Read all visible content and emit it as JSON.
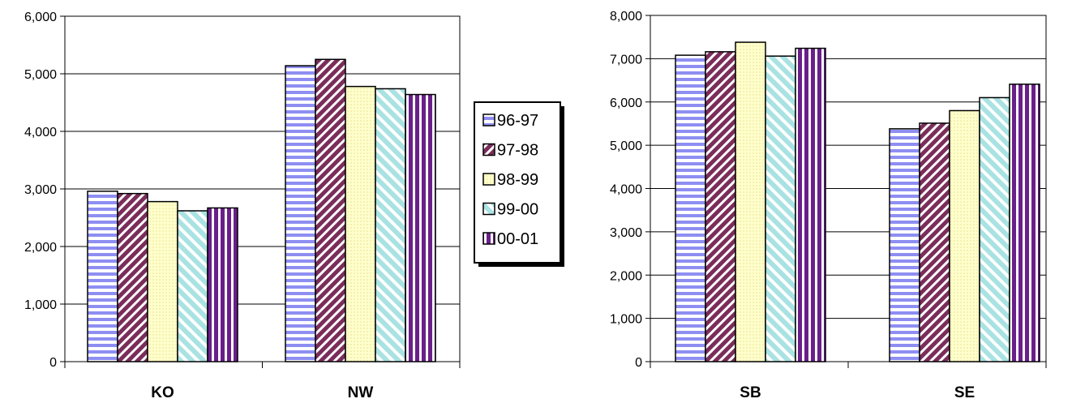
{
  "chart_data": [
    {
      "type": "bar",
      "categories": [
        "KO",
        "NW"
      ],
      "ylim": [
        0,
        6000
      ],
      "yticks": [
        "0",
        "1,000",
        "2,000",
        "3,000",
        "4,000",
        "5,000",
        "6,000"
      ],
      "grid": true,
      "series": [
        {
          "name": "96-97",
          "values": [
            2960,
            5140
          ]
        },
        {
          "name": "97-98",
          "values": [
            2920,
            5250
          ]
        },
        {
          "name": "98-99",
          "values": [
            2780,
            4780
          ]
        },
        {
          "name": "99-00",
          "values": [
            2620,
            4740
          ]
        },
        {
          "name": "00-01",
          "values": [
            2670,
            4640
          ]
        }
      ]
    },
    {
      "type": "bar",
      "categories": [
        "SB",
        "SE"
      ],
      "ylim": [
        0,
        8000
      ],
      "yticks": [
        "0",
        "1,000",
        "2,000",
        "3,000",
        "4,000",
        "5,000",
        "6,000",
        "7,000",
        "8,000"
      ],
      "grid": true,
      "series": [
        {
          "name": "96-97",
          "values": [
            7080,
            5380
          ]
        },
        {
          "name": "97-98",
          "values": [
            7160,
            5510
          ]
        },
        {
          "name": "98-99",
          "values": [
            7380,
            5800
          ]
        },
        {
          "name": "99-00",
          "values": [
            7060,
            6100
          ]
        },
        {
          "name": "00-01",
          "values": [
            7240,
            6410
          ]
        }
      ]
    }
  ],
  "legend": {
    "placement": "between-charts",
    "items": [
      "96-97",
      "97-98",
      "98-99",
      "99-00",
      "00-01"
    ]
  }
}
